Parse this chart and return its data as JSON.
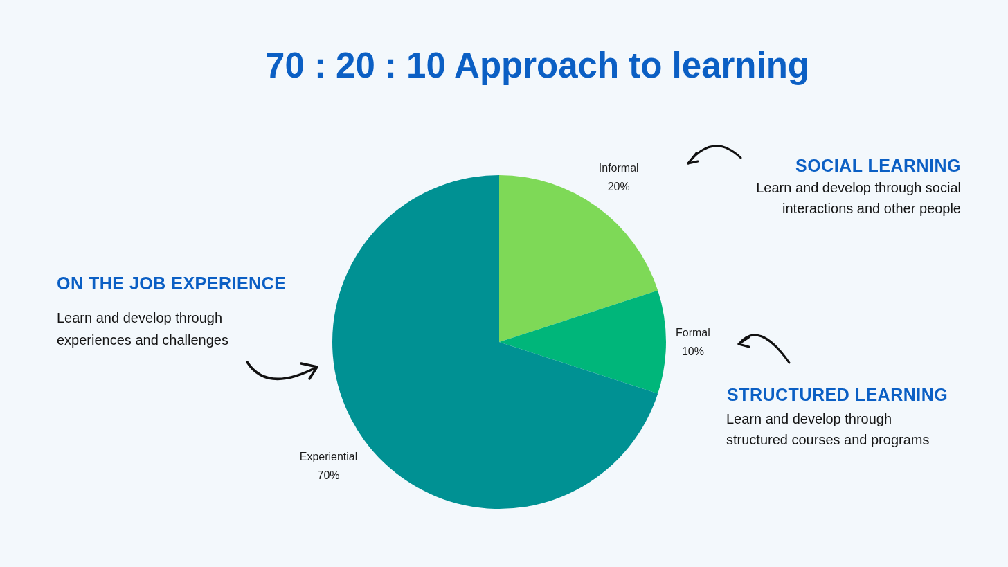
{
  "chart_data": {
    "type": "pie",
    "title": "70 : 20 : 10 Approach to learning",
    "categories": [
      "Informal",
      "Formal",
      "Experiential"
    ],
    "values": [
      20,
      10,
      70
    ],
    "colors": [
      "#7ed957",
      "#00b67a",
      "#009193"
    ],
    "value_labels": [
      "20%",
      "10%",
      "70%"
    ],
    "annotations": [
      "SOCIAL LEARNING",
      "Learn and develop through social interactions and other people",
      "ON THE JOB EXPERIENCE",
      "Learn and develop through experiences and challenges",
      "STRUCTURED LEARNING",
      "Learn and develop through structured courses and programs"
    ]
  }
}
